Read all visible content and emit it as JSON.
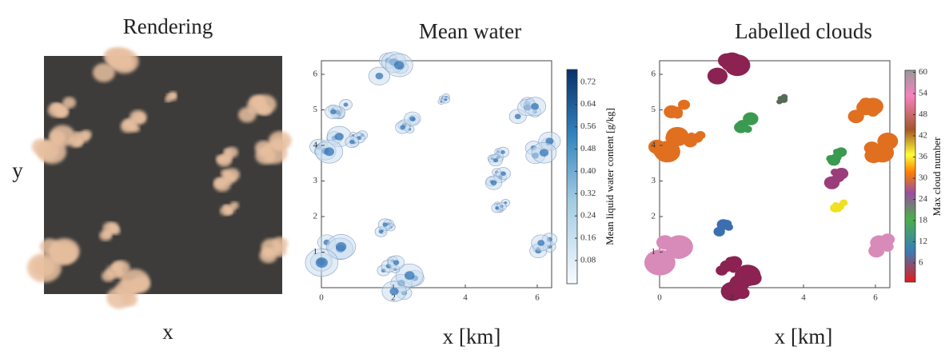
{
  "panels": [
    {
      "title": "Rendering",
      "x_label": "x",
      "y_label": "y"
    },
    {
      "title": "Mean water",
      "x_label": "x [km]",
      "xticks": [
        "0",
        "2",
        "4",
        "6"
      ],
      "yticks": [
        "1",
        "2",
        "3",
        "4",
        "5",
        "6"
      ],
      "colorbar_label": "Mean liquid water content [g/kg]",
      "colorbar_ticks": [
        "0.08",
        "0.16",
        "0.24",
        "0.32",
        "0.40",
        "0.48",
        "0.56",
        "0.64",
        "0.72"
      ]
    },
    {
      "title": "Labelled clouds",
      "x_label": "x [km]",
      "xticks": [
        "0",
        "2",
        "4",
        "6"
      ],
      "yticks": [
        "1",
        "2",
        "3",
        "4",
        "5",
        "6"
      ],
      "colorbar_label": "Max cloud number",
      "colorbar_ticks": [
        "6",
        "12",
        "18",
        "24",
        "30",
        "36",
        "42",
        "48",
        "54",
        "60"
      ]
    }
  ]
}
